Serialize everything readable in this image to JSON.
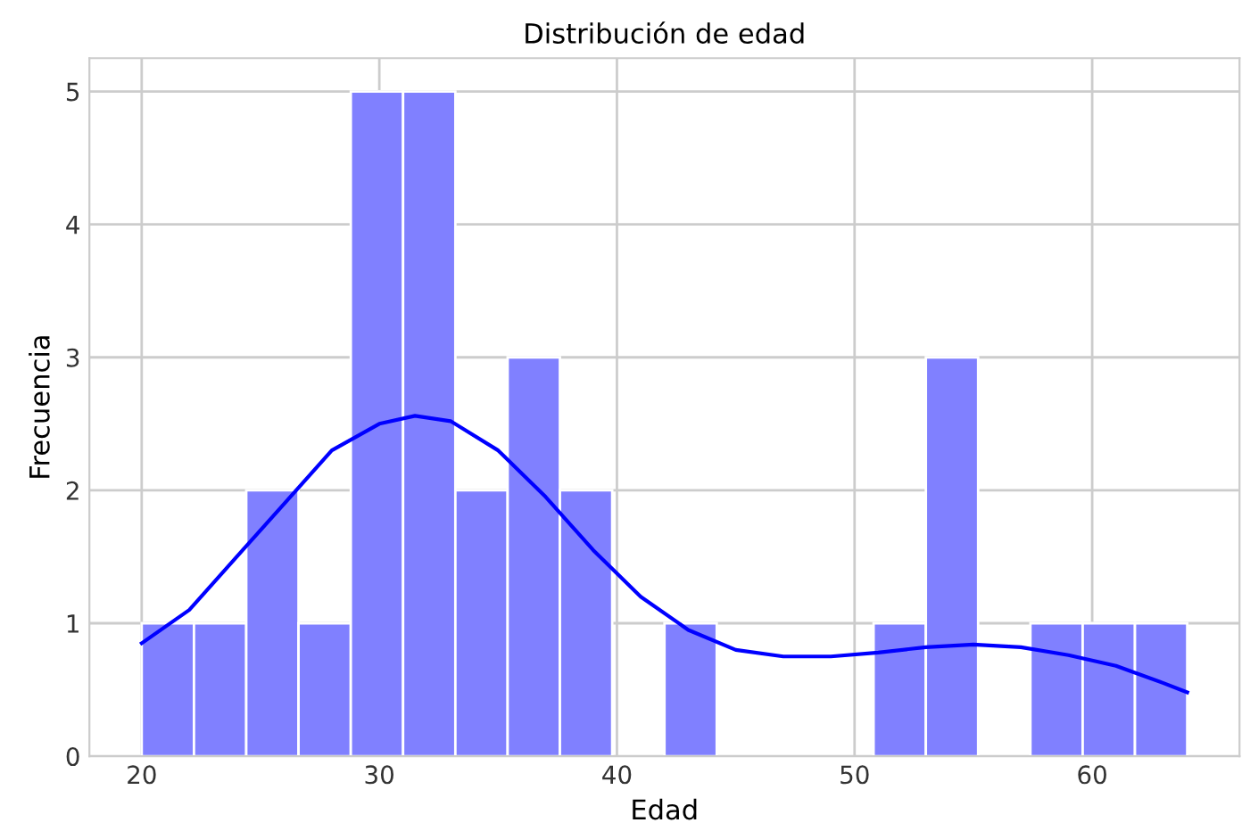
{
  "chart_data": {
    "type": "histogram",
    "title": "Distribución de edad",
    "xlabel": "Edad",
    "ylabel": "Frecuencia",
    "bins": [
      20,
      22.2,
      24.4,
      26.6,
      28.8,
      31,
      33.2,
      35.4,
      37.6,
      39.8,
      42,
      44.2,
      46.4,
      48.6,
      50.8,
      53,
      55.2,
      57.4,
      59.6,
      61.8,
      64
    ],
    "values": [
      1,
      1,
      2,
      1,
      5,
      5,
      2,
      3,
      2,
      0,
      1,
      0,
      0,
      0,
      1,
      3,
      0,
      1,
      1,
      1
    ],
    "color": "#8080ff",
    "series": [
      {
        "type": "line",
        "color": "#0000ff",
        "x": [
          20,
          22,
          24,
          26,
          28,
          30,
          31.5,
          33,
          35,
          37,
          39,
          41,
          43,
          45,
          47,
          49,
          51,
          53,
          55,
          57,
          59,
          61,
          63,
          64
        ],
        "values": [
          0.85,
          1.1,
          1.5,
          1.9,
          2.3,
          2.5,
          2.56,
          2.52,
          2.3,
          1.95,
          1.55,
          1.2,
          0.95,
          0.8,
          0.75,
          0.75,
          0.78,
          0.82,
          0.84,
          0.82,
          0.76,
          0.68,
          0.55,
          0.48
        ]
      }
    ],
    "xlim": [
      17.8,
      66.2
    ],
    "ylim": [
      0,
      5.25
    ],
    "xticks": [
      20,
      30,
      40,
      50,
      60
    ],
    "yticks": [
      0,
      1,
      2,
      3,
      4,
      5
    ],
    "grid": true
  }
}
